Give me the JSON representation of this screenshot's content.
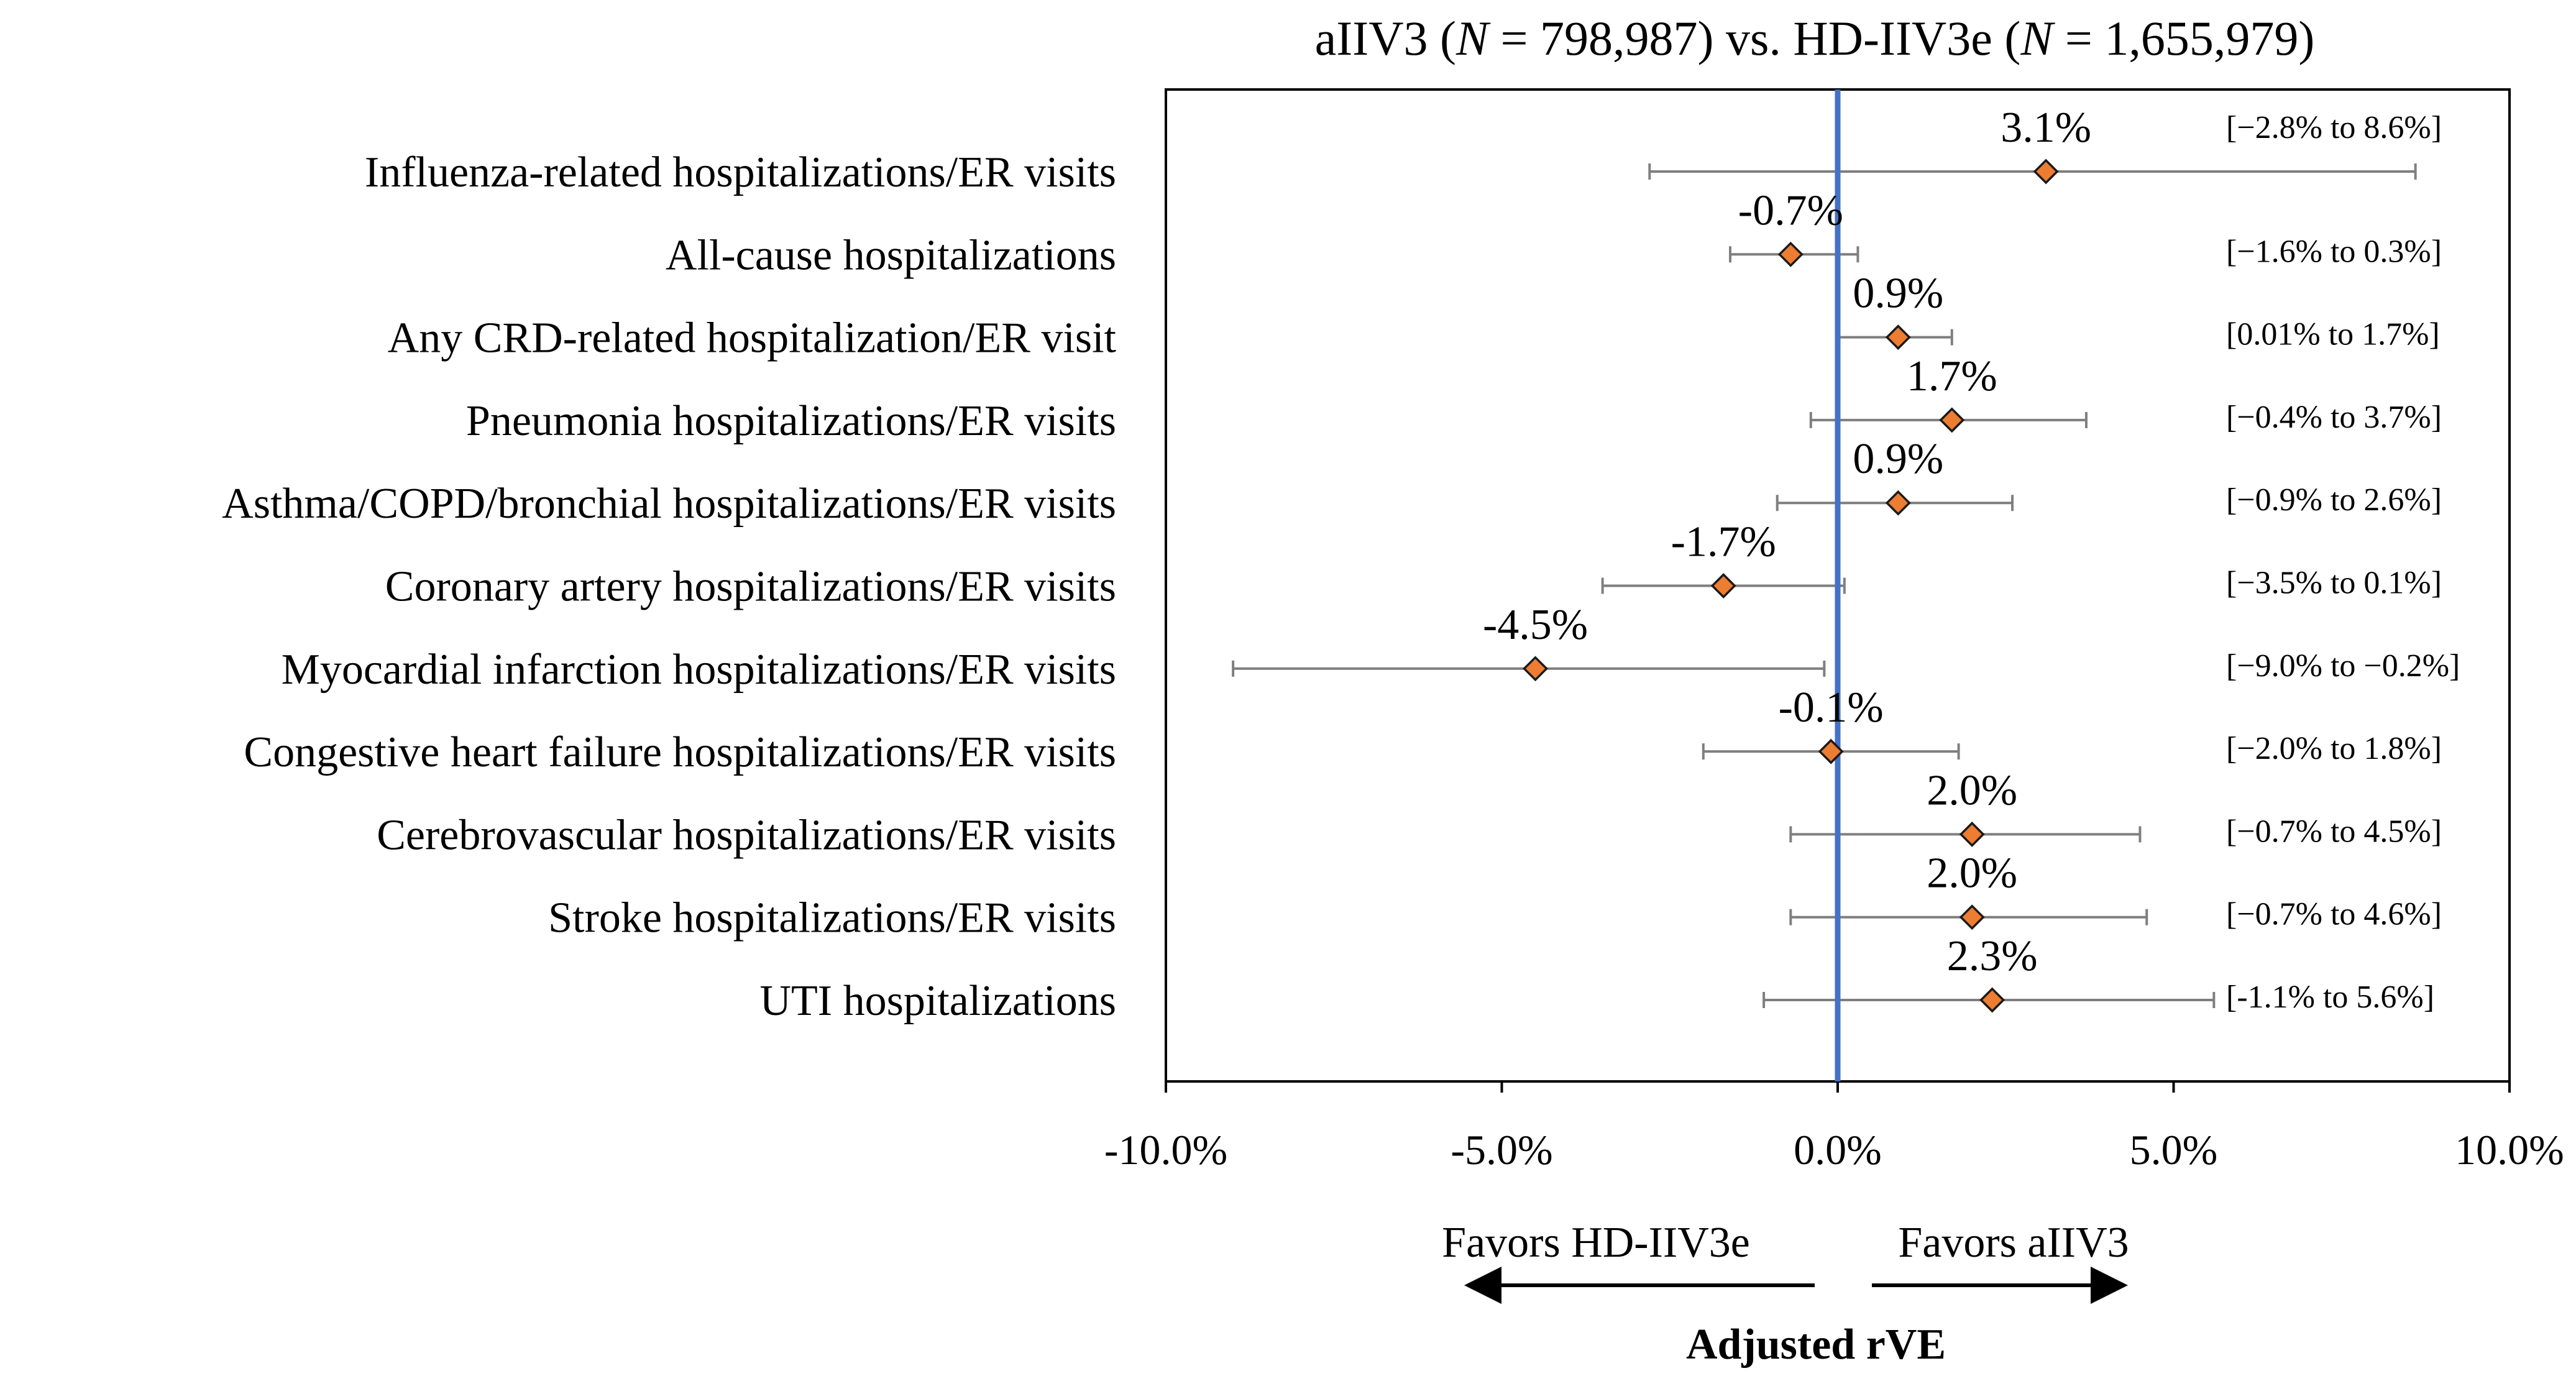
{
  "chart_data": {
    "type": "forest",
    "title_parts": [
      "aIIV3 (",
      "N",
      " = 798,987) vs. HD-IIV3e (",
      "N",
      " = 1,655,979)"
    ],
    "title": "aIIV3 (N = 798,987) vs. HD-IIV3e (N = 1,655,979)",
    "xlabel": "Adjusted rVE",
    "xlim": [
      -10,
      10
    ],
    "x_ticks": [
      -10,
      -5,
      0,
      5,
      10
    ],
    "x_tick_labels": [
      "-10.0%",
      "-5.0%",
      "0.0%",
      "5.0%",
      "10.0%"
    ],
    "reference_line": 0,
    "favors_left": "Favors HD-IIV3e",
    "favors_right": "Favors aIIV3",
    "colors": {
      "marker_fill": "#ED7D31",
      "marker_stroke": "#1a1a1a",
      "reference_line": "#4472C4",
      "whisker": "#7f7f7f"
    },
    "rows": [
      {
        "category": "Influenza-related hospitalizations/ER visits",
        "estimate": 3.1,
        "ci_low": -2.8,
        "ci_high": 8.6,
        "estimate_label": "3.1%",
        "ci_label": "[−2.8% to 8.6%]"
      },
      {
        "category": "All-cause hospitalizations",
        "estimate": -0.7,
        "ci_low": -1.6,
        "ci_high": 0.3,
        "estimate_label": "-0.7%",
        "ci_label": "[−1.6% to 0.3%]"
      },
      {
        "category": "Any CRD-related hospitalization/ER visit",
        "estimate": 0.9,
        "ci_low": 0.01,
        "ci_high": 1.7,
        "estimate_label": "0.9%",
        "ci_label": "[0.01% to 1.7%]"
      },
      {
        "category": "Pneumonia hospitalizations/ER visits",
        "estimate": 1.7,
        "ci_low": -0.4,
        "ci_high": 3.7,
        "estimate_label": "1.7%",
        "ci_label": "[−0.4% to 3.7%]"
      },
      {
        "category": "Asthma/COPD/bronchial hospitalizations/ER visits",
        "estimate": 0.9,
        "ci_low": -0.9,
        "ci_high": 2.6,
        "estimate_label": "0.9%",
        "ci_label": "[−0.9% to 2.6%]"
      },
      {
        "category": "Coronary artery hospitalizations/ER visits",
        "estimate": -1.7,
        "ci_low": -3.5,
        "ci_high": 0.1,
        "estimate_label": "-1.7%",
        "ci_label": "[−3.5% to 0.1%]"
      },
      {
        "category": "Myocardial infarction hospitalizations/ER visits",
        "estimate": -4.5,
        "ci_low": -9.0,
        "ci_high": -0.2,
        "estimate_label": "-4.5%",
        "ci_label": "[−9.0% to −0.2%]"
      },
      {
        "category": "Congestive heart failure hospitalizations/ER visits",
        "estimate": -0.1,
        "ci_low": -2.0,
        "ci_high": 1.8,
        "estimate_label": "-0.1%",
        "ci_label": "[−2.0% to 1.8%]"
      },
      {
        "category": "Cerebrovascular hospitalizations/ER visits",
        "estimate": 2.0,
        "ci_low": -0.7,
        "ci_high": 4.5,
        "estimate_label": "2.0%",
        "ci_label": "[−0.7% to 4.5%]"
      },
      {
        "category": "Stroke hospitalizations/ER visits",
        "estimate": 2.0,
        "ci_low": -0.7,
        "ci_high": 4.6,
        "estimate_label": "2.0%",
        "ci_label": "[−0.7% to 4.6%]"
      },
      {
        "category": "UTI hospitalizations",
        "estimate": 2.3,
        "ci_low": -1.1,
        "ci_high": 5.6,
        "estimate_label": "2.3%",
        "ci_label": "[-1.1% to 5.6%]"
      }
    ]
  }
}
